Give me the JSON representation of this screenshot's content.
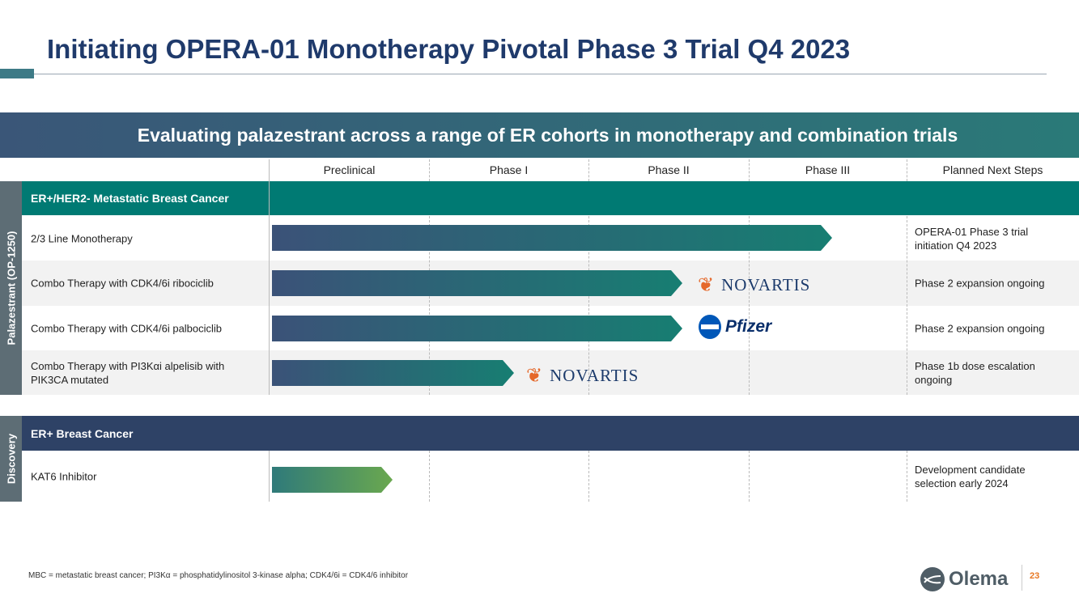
{
  "title": "Initiating OPERA-01 Monotherapy Pivotal Phase 3 Trial Q4 2023",
  "banner": "Evaluating palazestrant across a range of ER cohorts in monotherapy and combination trials",
  "columns": [
    "Preclinical",
    "Phase I",
    "Phase II",
    "Phase III",
    "Planned Next Steps"
  ],
  "groups": [
    {
      "side_label": "Palazestrant (OP-1250)",
      "section": "ER+/HER2- Metastatic Breast Cancer",
      "rows": [
        {
          "label": "2/3 Line Monotherapy",
          "next": "OPERA-01 Phase 3 trial initiation Q4 2023",
          "progress": "Phase III",
          "partner": ""
        },
        {
          "label": "Combo Therapy with CDK4/6i ribociclib",
          "next": "Phase 2 expansion ongoing",
          "progress": "Phase II",
          "partner": "NOVARTIS"
        },
        {
          "label": "Combo Therapy with CDK4/6i palbociclib",
          "next": "Phase 2 expansion ongoing",
          "progress": "Phase II",
          "partner": "Pfizer"
        },
        {
          "label": "Combo Therapy with PI3Kαi alpelisib with PIK3CA mutated",
          "next": "Phase 1b dose escalation ongoing",
          "progress": "Phase I",
          "partner": "NOVARTIS"
        }
      ]
    },
    {
      "side_label": "Discovery",
      "section": "ER+ Breast Cancer",
      "rows": [
        {
          "label": "KAT6 Inhibitor",
          "next": "Development candidate selection early 2024",
          "progress": "Preclinical",
          "partner": ""
        }
      ]
    }
  ],
  "footnote": "MBC = metastatic breast cancer; PI3Kα = phosphatidylinositol 3-kinase alpha; CDK4/6i = CDK4/6 inhibitor",
  "logo": "Olema ONCOLOGY",
  "page_number": "23"
}
